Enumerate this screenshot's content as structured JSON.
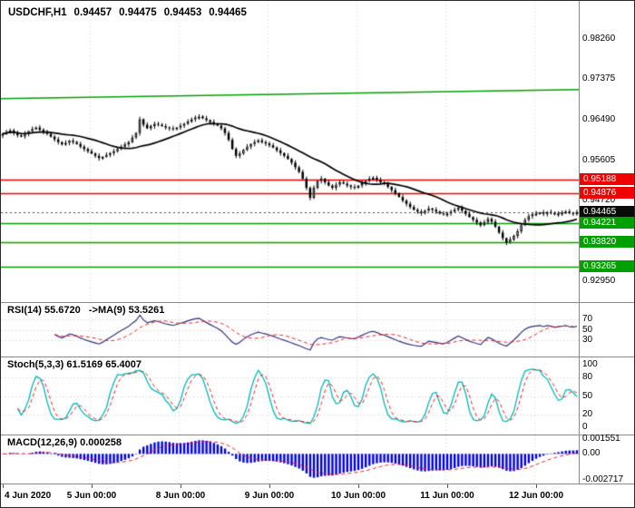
{
  "header": {
    "symbol": "USDCHF,H1",
    "open": "0.94457",
    "high": "0.94475",
    "low": "0.94453",
    "close": "0.94465"
  },
  "colors": {
    "chart_bg": "#ffffff",
    "up_candle": "#ffffff",
    "down_candle": "#000000",
    "candle_outline": "#000000",
    "ma_line": "#000000",
    "trendline": "#00a000",
    "resistance": "#f00000",
    "support": "#00a000",
    "current_price_bg": "#0a0a0a",
    "rsi_line": "#32327a",
    "signal_line": "#ee2222",
    "stoch_line": "#00b8b8",
    "macd_histogram": "#0000e0",
    "grid_dotted": "#c8c8c8",
    "day_separator": "#d4d4d4"
  },
  "chart_data": [
    {
      "type": "candlestick",
      "title": "USDCHF,H1",
      "timeframe": "H1",
      "x_labels": [
        "4 Jun 2020",
        "5 Jun 00:00",
        "8 Jun 00:00",
        "9 Jun 00:00",
        "10 Jun 00:00",
        "11 Jun 00:00",
        "12 Jun 00:00"
      ],
      "x_label_indices": [
        0,
        24,
        48,
        72,
        96,
        120,
        144
      ],
      "ylim": [
        0.9262,
        0.9893
      ],
      "y_ticks": [
        "0.98260",
        "0.97375",
        "0.96490",
        "0.95605",
        "0.94720",
        "0.92950"
      ],
      "y_tick_values": [
        0.9826,
        0.97375,
        0.9649,
        0.95605,
        0.9472,
        0.9295
      ],
      "ma_period": 20,
      "closes": [
        0.9618,
        0.9622,
        0.96255,
        0.962,
        0.9615,
        0.9612,
        0.96185,
        0.9624,
        0.96285,
        0.9632,
        0.9627,
        0.96225,
        0.9618,
        0.9612,
        0.9606,
        0.96,
        0.9595,
        0.95985,
        0.9603,
        0.96,
        0.9596,
        0.959,
        0.9585,
        0.958,
        0.9575,
        0.957,
        0.9565,
        0.9568,
        0.9572,
        0.9576,
        0.958,
        0.9585,
        0.959,
        0.9595,
        0.96,
        0.961,
        0.962,
        0.965,
        0.9638,
        0.963,
        0.9635,
        0.964,
        0.9638,
        0.9635,
        0.9632,
        0.963,
        0.9628,
        0.9632,
        0.9636,
        0.964,
        0.9645,
        0.965,
        0.9654,
        0.9656,
        0.9652,
        0.9648,
        0.9644,
        0.964,
        0.9636,
        0.963,
        0.962,
        0.9605,
        0.9585,
        0.957,
        0.9575,
        0.9583,
        0.959,
        0.9596,
        0.96,
        0.9604,
        0.96,
        0.9597,
        0.9593,
        0.9588,
        0.9582,
        0.9576,
        0.957,
        0.9563,
        0.9555,
        0.9545,
        0.9535,
        0.952,
        0.95,
        0.9478,
        0.95,
        0.9515,
        0.952,
        0.9512,
        0.9505,
        0.95,
        0.9507,
        0.9512,
        0.9509,
        0.9505,
        0.9502,
        0.95,
        0.9505,
        0.951,
        0.9515,
        0.952,
        0.9522,
        0.9518,
        0.9512,
        0.9508,
        0.9502,
        0.9495,
        0.9488,
        0.948,
        0.9472,
        0.9465,
        0.9458,
        0.9452,
        0.9448,
        0.9445,
        0.945,
        0.9455,
        0.9452,
        0.9448,
        0.9444,
        0.9442,
        0.9444,
        0.9448,
        0.9452,
        0.9456,
        0.945,
        0.9443,
        0.9436,
        0.943,
        0.9424,
        0.9418,
        0.9425,
        0.9432,
        0.9426,
        0.9415,
        0.9402,
        0.939,
        0.938,
        0.9387,
        0.9395,
        0.9405,
        0.9418,
        0.943,
        0.9438,
        0.9442,
        0.9444,
        0.9446,
        0.9443,
        0.9447,
        0.9445,
        0.9442,
        0.9444,
        0.9446,
        0.9448,
        0.9445,
        0.9444,
        0.94465
      ],
      "levels": [
        {
          "price": 0.95188,
          "label": "0.95188",
          "type": "resistance"
        },
        {
          "price": 0.94876,
          "label": "0.94876",
          "type": "resistance"
        },
        {
          "price": 0.94465,
          "label": "0.94465",
          "type": "current-price"
        },
        {
          "price": 0.94221,
          "label": "0.94221",
          "type": "support"
        },
        {
          "price": 0.9382,
          "label": "0.93820",
          "type": "support"
        },
        {
          "price": 0.93265,
          "label": "0.93265",
          "type": "support"
        }
      ],
      "trendline": {
        "start_price": 0.9695,
        "end_price": 0.9715
      }
    },
    {
      "type": "line",
      "name": "RSI",
      "label": "RSI(14) 55.6720   ->MA(9) 53.5261",
      "value": 55.672,
      "ma_value": 53.5261,
      "period": 14,
      "ma_period": 9,
      "levels": [
        70,
        50,
        30
      ],
      "level_labels": [
        "70",
        "50",
        "30"
      ],
      "ylim": [
        10,
        90
      ]
    },
    {
      "type": "line",
      "name": "Stochastic",
      "label": "Stoch(5,3,3) 61.5169 65.4007",
      "k_value": 61.5169,
      "d_value": 65.4007,
      "levels": [
        80,
        50,
        20
      ],
      "level_labels": [
        "100",
        "80",
        "50",
        "20",
        "0"
      ],
      "level_label_values": [
        100,
        80,
        50,
        20,
        0
      ],
      "ylim": [
        -6,
        106
      ]
    },
    {
      "type": "histogram",
      "name": "MACD",
      "label": "MACD(12,26,9) 0.000258",
      "value": 0.000258,
      "y_ticks": [
        "0.001551",
        "0.00",
        "-0.002717"
      ],
      "y_tick_values": [
        0.001551,
        0,
        -0.002717
      ],
      "ylim": [
        -0.002717,
        0.001551
      ]
    }
  ]
}
